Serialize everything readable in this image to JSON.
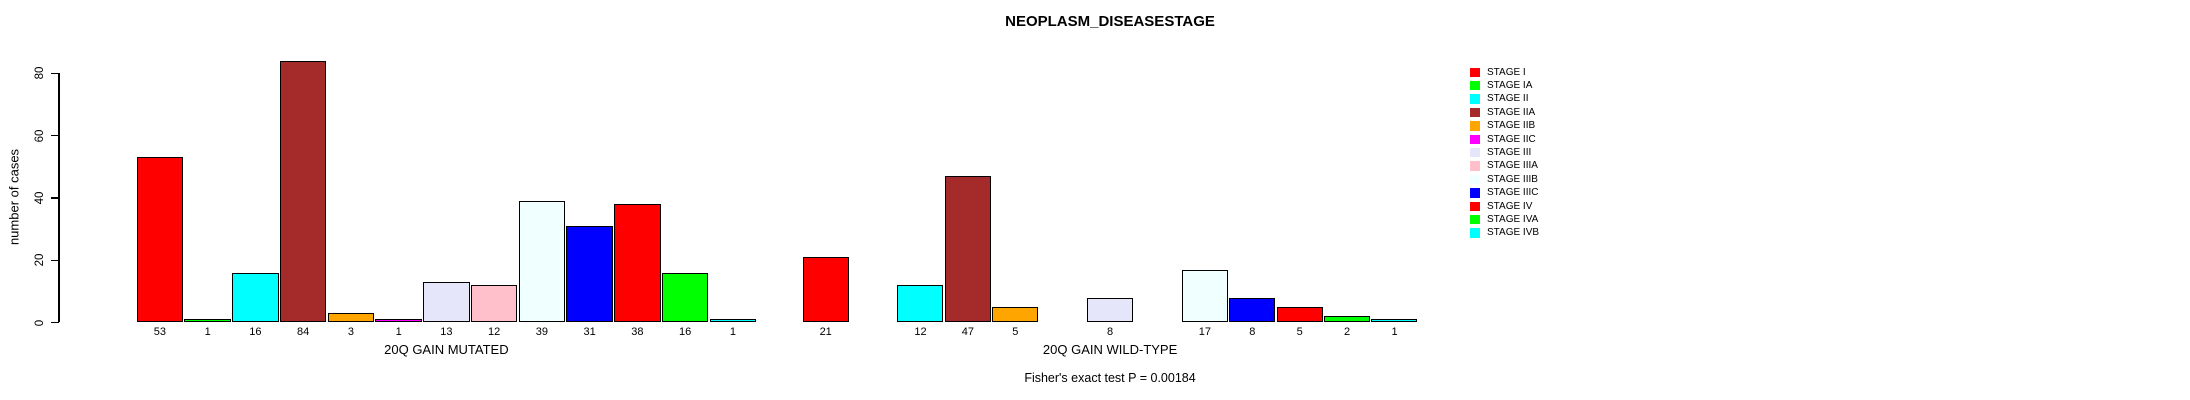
{
  "header": {
    "title": "NEOPLASM_DISEASESTAGE"
  },
  "footer": {
    "note": "Fisher's exact test P = 0.00184"
  },
  "chart_data": {
    "type": "bar",
    "title": "NEOPLASM_DISEASESTAGE",
    "xlabel": "",
    "ylabel": "number of cases",
    "ylim": [
      0,
      84
    ],
    "yticks": [
      0,
      20,
      40,
      60,
      80
    ],
    "grid": false,
    "legend_position": "right",
    "categories": [
      "STAGE I",
      "STAGE IA",
      "STAGE II",
      "STAGE IIA",
      "STAGE IIB",
      "STAGE IIC",
      "STAGE III",
      "STAGE IIIA",
      "STAGE IIIB",
      "STAGE IIIC",
      "STAGE IV",
      "STAGE IVA",
      "STAGE IVB"
    ],
    "colors": [
      "#FF0000",
      "#00FF00",
      "#00FFFF",
      "#A52A2A",
      "#FFA500",
      "#FF00FF",
      "#E6E6FA",
      "#FFC0CB",
      "#F0FFFF",
      "#0000FF",
      "#FF0000",
      "#00FF00",
      "#00FFFF"
    ],
    "series": [
      {
        "name": "20Q GAIN MUTATED",
        "values": [
          53,
          1,
          16,
          84,
          3,
          1,
          13,
          12,
          39,
          31,
          38,
          16,
          1
        ]
      },
      {
        "name": "20Q GAIN WILD-TYPE",
        "values": [
          21,
          0,
          12,
          47,
          5,
          0,
          8,
          0,
          17,
          8,
          5,
          2,
          1
        ]
      }
    ],
    "bar_value_labels": true,
    "zero_bars_hidden": true,
    "footnote": "Fisher's exact test P = 0.00184"
  }
}
